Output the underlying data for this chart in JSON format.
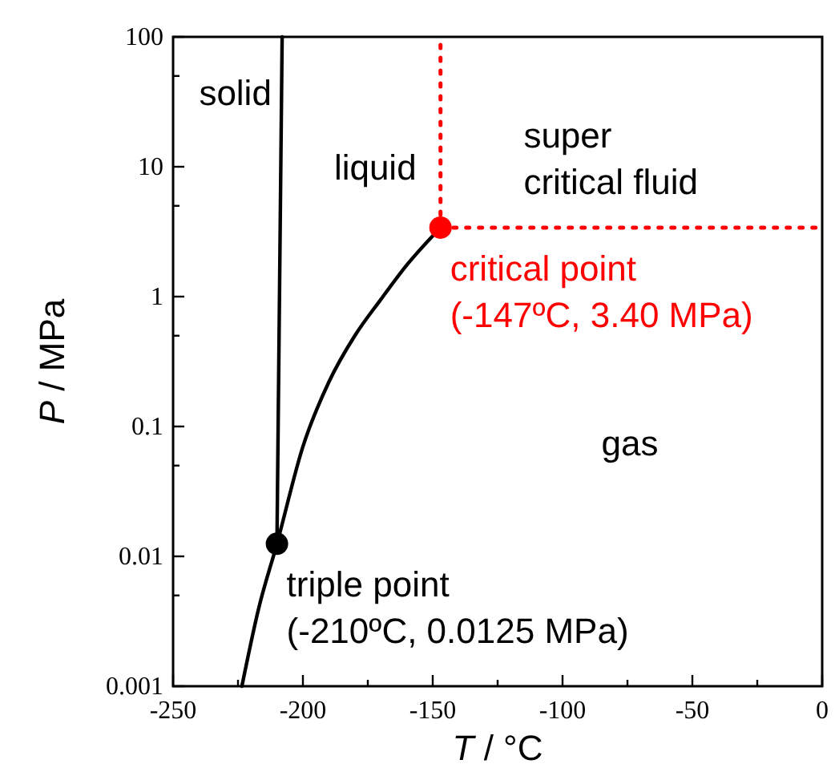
{
  "chart_data": {
    "type": "line",
    "xlabel": "T / °C",
    "ylabel": "P / MPa",
    "log": "y",
    "xlim": [
      -250,
      0
    ],
    "ylim": [
      0.001,
      100
    ],
    "xticks": [
      -250,
      {
        "value": -225,
        "label": null
      },
      -200,
      {
        "value": -175,
        "label": null
      },
      -150,
      {
        "value": -125,
        "label": null
      },
      -100,
      {
        "value": -75,
        "label": null
      },
      -50,
      {
        "value": -25,
        "label": null
      },
      0
    ],
    "yticks": [
      0.001,
      {
        "value": 0.005,
        "label": null
      },
      0.01,
      {
        "value": 0.05,
        "label": null
      },
      0.1,
      {
        "value": 0.5,
        "label": null
      },
      1,
      {
        "value": 5,
        "label": null
      },
      10,
      {
        "value": 50,
        "label": null
      },
      100
    ],
    "grid": false,
    "series": [
      {
        "color": "#000000",
        "line_style": "solid",
        "x": [
          -210,
          -208
        ],
        "values": [
          0.0125,
          100
        ]
      },
      {
        "color": "#000000",
        "line_style": "solid",
        "x": [
          -223.5,
          -217,
          -210,
          -200,
          -190,
          -180,
          -170,
          -160,
          -147
        ],
        "values": [
          0.001,
          0.004,
          0.0125,
          0.07,
          0.22,
          0.5,
          0.95,
          1.75,
          3.4
        ]
      },
      {
        "color": "#ff0000",
        "line_style": "dotted",
        "x": [
          -147,
          -147
        ],
        "values": [
          3.4,
          100
        ]
      },
      {
        "color": "#ff0000",
        "line_style": "dotted",
        "x": [
          -147,
          0
        ],
        "values": [
          3.4,
          3.4
        ]
      },
      {
        "type": "scatter",
        "color": "#000000",
        "marker": "circle",
        "x": [
          -210
        ],
        "values": [
          0.0125
        ]
      },
      {
        "type": "scatter",
        "color": "#ff0000",
        "marker": "circle",
        "x": [
          -147
        ],
        "values": [
          3.4
        ]
      }
    ],
    "annotations": [
      "solid",
      "liquid",
      "super\ncritical fluid",
      "gas",
      {
        "text": "triple point\n(-210ºC, 0.0125 MPa)",
        "x": -210,
        "y": 0.0125
      },
      {
        "text": "critical point\n(-147ºC, 3.40 MPa)",
        "x": -147,
        "y": 3.4
      }
    ]
  }
}
